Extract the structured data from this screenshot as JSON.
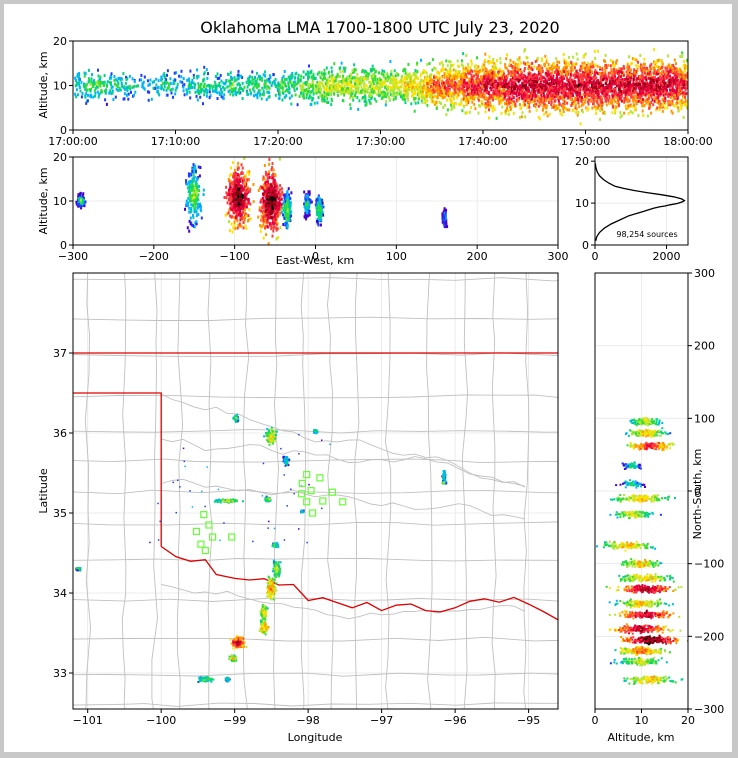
{
  "figure": {
    "title": "Oklahoma LMA 1700-1800 UTC July 23, 2020"
  },
  "chart_data": [
    {
      "id": "time_height",
      "type": "heatmap",
      "xlabel": "",
      "ylabel": "Altitude, km",
      "xticks": [
        "17:00:00",
        "17:10:00",
        "17:20:00",
        "17:30:00",
        "17:40:00",
        "17:50:00",
        "18:00:00"
      ],
      "xlim": [
        "17:00:00",
        "18:00:00"
      ],
      "ylim": [
        0,
        20
      ],
      "yticks": [
        0,
        10,
        20
      ],
      "density_profile": [
        2,
        3,
        3,
        2,
        2,
        2,
        1,
        1,
        2,
        2,
        1,
        2,
        3,
        2,
        2,
        3,
        2,
        3,
        3,
        2,
        3,
        3,
        4,
        4,
        5,
        5,
        5,
        5,
        5,
        5,
        5,
        5,
        6,
        6,
        7,
        8,
        8,
        8,
        9,
        9,
        10,
        9,
        10,
        10,
        10,
        10,
        10,
        10,
        10,
        10,
        10,
        10,
        10,
        10,
        10,
        10,
        10,
        10,
        10,
        9
      ],
      "center_altitude": 10
    },
    {
      "id": "east_west_height",
      "type": "heatmap",
      "xlabel": "East-West, km",
      "ylabel": "Altitude, km",
      "xlim": [
        -300,
        300
      ],
      "xticks": [
        -300,
        -200,
        -100,
        0,
        100,
        200,
        300
      ],
      "ylim": [
        0,
        20
      ],
      "yticks": [
        0,
        10,
        20
      ],
      "clusters": [
        {
          "x": -290,
          "w": 8,
          "alt": 10,
          "spread": 2,
          "i": 3
        },
        {
          "x": -150,
          "w": 14,
          "alt": 11,
          "spread": 9,
          "i": 4
        },
        {
          "x": -95,
          "w": 22,
          "alt": 11,
          "spread": 9,
          "i": 10
        },
        {
          "x": -55,
          "w": 22,
          "alt": 10,
          "spread": 10,
          "i": 10
        },
        {
          "x": -35,
          "w": 8,
          "alt": 8,
          "spread": 5,
          "i": 4
        },
        {
          "x": -10,
          "w": 6,
          "alt": 9,
          "spread": 4,
          "i": 3
        },
        {
          "x": 5,
          "w": 6,
          "alt": 8,
          "spread": 4,
          "i": 4
        },
        {
          "x": 160,
          "w": 4,
          "alt": 6,
          "spread": 3,
          "i": 2
        }
      ]
    },
    {
      "id": "altitude_histogram",
      "type": "line",
      "annotation": "98,254 sources",
      "xlim": [
        0,
        2600
      ],
      "xticks": [
        0,
        2000
      ],
      "ylim": [
        0,
        21
      ],
      "yticks": [
        0,
        10,
        20
      ],
      "series": [
        {
          "x": [
            20,
            50,
            130,
            260,
            450,
            700,
            950,
            1150,
            1350,
            1500,
            1650,
            1800,
            1950,
            2100,
            2300,
            2450,
            2500,
            2420,
            2200,
            1850,
            1450,
            1100,
            800,
            560,
            380,
            240,
            130,
            60,
            25,
            8
          ],
          "y": [
            1,
            2,
            3,
            4,
            5,
            6,
            7,
            7.5,
            8,
            8.4,
            8.8,
            9.1,
            9.3,
            9.6,
            9.9,
            10.3,
            10.6,
            11,
            11.5,
            12,
            12.5,
            13,
            13.5,
            14,
            14.8,
            15.6,
            16.5,
            17.5,
            18.5,
            19.5
          ]
        }
      ]
    },
    {
      "id": "plan_view",
      "type": "scatter",
      "xlabel": "Longitude",
      "ylabel": "Latitude",
      "xlim": [
        -101.2,
        -94.6
      ],
      "ylim": [
        32.55,
        38.0
      ],
      "xticks": [
        -101,
        -100,
        -99,
        -98,
        -97,
        -96,
        -95
      ],
      "yticks": [
        33,
        34,
        35,
        36,
        37
      ],
      "state_border_color": "#e00000",
      "county_color": "#c0c0c0",
      "station_color": "#66ff33",
      "stations": [
        [
          -98.02,
          35.48
        ],
        [
          -97.84,
          35.44
        ],
        [
          -98.08,
          35.37
        ],
        [
          -97.96,
          35.28
        ],
        [
          -98.09,
          35.24
        ],
        [
          -97.67,
          35.26
        ],
        [
          -98.02,
          35.14
        ],
        [
          -97.8,
          35.15
        ],
        [
          -97.53,
          35.14
        ],
        [
          -97.94,
          35.0
        ],
        [
          -99.42,
          34.98
        ],
        [
          -99.35,
          34.85
        ],
        [
          -99.52,
          34.77
        ],
        [
          -99.3,
          34.7
        ],
        [
          -99.04,
          34.7
        ],
        [
          -99.46,
          34.61
        ],
        [
          -99.4,
          34.53
        ]
      ],
      "clusters": [
        {
          "lon": -98.98,
          "lat": 36.18,
          "w": 0.05,
          "h": 0.06,
          "i": 3
        },
        {
          "lon": -98.5,
          "lat": 35.95,
          "w": 0.1,
          "h": 0.14,
          "i": 5
        },
        {
          "lon": -97.9,
          "lat": 36.02,
          "w": 0.04,
          "h": 0.03,
          "i": 3
        },
        {
          "lon": -98.3,
          "lat": 35.65,
          "w": 0.06,
          "h": 0.1,
          "i": 2
        },
        {
          "lon": -99.1,
          "lat": 35.15,
          "w": 0.25,
          "h": 0.03,
          "i": 4
        },
        {
          "lon": -98.55,
          "lat": 35.17,
          "w": 0.05,
          "h": 0.04,
          "i": 4
        },
        {
          "lon": -98.45,
          "lat": 34.6,
          "w": 0.06,
          "h": 0.04,
          "i": 3
        },
        {
          "lon": -98.43,
          "lat": 34.3,
          "w": 0.07,
          "h": 0.15,
          "i": 4
        },
        {
          "lon": -98.5,
          "lat": 34.05,
          "w": 0.08,
          "h": 0.18,
          "i": 6
        },
        {
          "lon": -98.6,
          "lat": 33.75,
          "w": 0.07,
          "h": 0.15,
          "i": 5
        },
        {
          "lon": -98.6,
          "lat": 33.57,
          "w": 0.08,
          "h": 0.1,
          "i": 6
        },
        {
          "lon": -98.95,
          "lat": 33.38,
          "w": 0.12,
          "h": 0.1,
          "i": 8
        },
        {
          "lon": -99.02,
          "lat": 33.18,
          "w": 0.06,
          "h": 0.05,
          "i": 5
        },
        {
          "lon": -99.4,
          "lat": 32.92,
          "w": 0.2,
          "h": 0.04,
          "i": 3
        },
        {
          "lon": -99.1,
          "lat": 32.92,
          "w": 0.04,
          "h": 0.04,
          "i": 2
        },
        {
          "lon": -101.12,
          "lat": 34.3,
          "w": 0.05,
          "h": 0.03,
          "i": 2
        },
        {
          "lon": -96.15,
          "lat": 35.45,
          "w": 0.03,
          "h": 0.12,
          "i": 2
        },
        {
          "lon": -96.15,
          "lat": 35.38,
          "w": 0.04,
          "h": 0.02,
          "i": 3
        },
        {
          "lon": -98.08,
          "lat": 35.02,
          "w": 0.03,
          "h": 0.02,
          "i": 2
        }
      ]
    },
    {
      "id": "north_south_height",
      "type": "heatmap",
      "xlabel": "Altitude, km",
      "ylabel": "North-South, km",
      "xlim": [
        0,
        20
      ],
      "xticks": [
        0,
        10,
        20
      ],
      "ylim": [
        -300,
        300
      ],
      "yticks": [
        -300,
        -200,
        -100,
        0,
        100,
        200,
        300
      ],
      "bands": [
        {
          "y": 95,
          "alt": 11,
          "spread": 5,
          "i": 4
        },
        {
          "y": 80,
          "alt": 11,
          "spread": 6,
          "i": 5
        },
        {
          "y": 62,
          "alt": 12,
          "spread": 7,
          "i": 7
        },
        {
          "y": 35,
          "alt": 8,
          "spread": 3,
          "i": 2
        },
        {
          "y": 10,
          "alt": 8,
          "spread": 4,
          "i": 2
        },
        {
          "y": -10,
          "alt": 10,
          "spread": 9,
          "i": 5
        },
        {
          "y": -32,
          "alt": 8,
          "spread": 7,
          "i": 4
        },
        {
          "y": -75,
          "alt": 7,
          "spread": 8,
          "i": 5
        },
        {
          "y": -100,
          "alt": 10,
          "spread": 6,
          "i": 5
        },
        {
          "y": -120,
          "alt": 11,
          "spread": 9,
          "i": 5
        },
        {
          "y": -135,
          "alt": 11,
          "spread": 9,
          "i": 8
        },
        {
          "y": -155,
          "alt": 10,
          "spread": 8,
          "i": 5
        },
        {
          "y": -170,
          "alt": 11,
          "spread": 9,
          "i": 8
        },
        {
          "y": -190,
          "alt": 10,
          "spread": 9,
          "i": 8
        },
        {
          "y": -205,
          "alt": 12,
          "spread": 9,
          "i": 9
        },
        {
          "y": -220,
          "alt": 10,
          "spread": 8,
          "i": 6
        },
        {
          "y": -235,
          "alt": 10,
          "spread": 8,
          "i": 4
        },
        {
          "y": -260,
          "alt": 12,
          "spread": 8,
          "i": 5
        }
      ]
    }
  ]
}
